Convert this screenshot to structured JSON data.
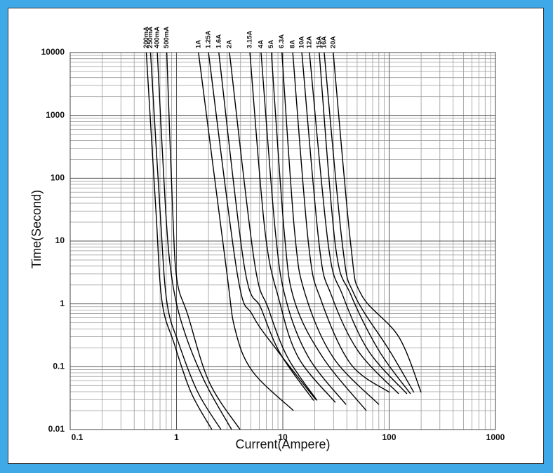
{
  "chart_data": {
    "type": "line",
    "x_label": "Current(Ampere)",
    "y_label": "Time(Second)",
    "x_scale": "log",
    "y_scale": "log",
    "grid": true,
    "color": "#000000",
    "xlim": [
      0.1,
      1000
    ],
    "ylim": [
      0.01,
      10000
    ],
    "xticks": [
      0.1,
      1,
      10,
      100,
      1000
    ],
    "yticks": [
      0.01,
      0.1,
      1,
      10,
      100,
      1000,
      10000
    ],
    "series": [
      {
        "name": "200mA",
        "x": [
          0.52,
          0.64,
          0.73,
          0.95,
          1.37,
          2.15
        ],
        "values": [
          10000,
          31,
          1.1,
          0.235,
          0.039,
          0.01
        ]
      },
      {
        "name": "250mA",
        "x": [
          0.57,
          0.7,
          0.81,
          1.05,
          1.59,
          2.62
        ],
        "values": [
          10000,
          31,
          1.1,
          0.235,
          0.039,
          0.01
        ]
      },
      {
        "name": "400mA",
        "x": [
          0.66,
          0.79,
          0.91,
          1.17,
          1.85,
          3.3
        ],
        "values": [
          10000,
          31,
          2.4,
          0.39,
          0.057,
          0.01
        ]
      },
      {
        "name": "500mA",
        "x": [
          0.81,
          0.92,
          1.01,
          1.28,
          2.03,
          3.96
        ],
        "values": [
          10000,
          31,
          2.4,
          0.66,
          0.057,
          0.01
        ]
      },
      {
        "name": "1A",
        "x": [
          1.61,
          2.92,
          3.56,
          5.2,
          12.6
        ],
        "values": [
          10000,
          4.0,
          0.39,
          0.084,
          0.02
        ]
      },
      {
        "name": "1.25A",
        "x": [
          2.0,
          3.72,
          5.2,
          8.9,
          20.4
        ],
        "values": [
          10000,
          3.1,
          0.66,
          0.18,
          0.03
        ]
      },
      {
        "name": "1.6A",
        "x": [
          2.5,
          4.34,
          6.24,
          9.5,
          19.5
        ],
        "values": [
          10000,
          4.0,
          0.85,
          0.16,
          0.029
        ]
      },
      {
        "name": "2A",
        "x": [
          3.15,
          5.36,
          7.3,
          11.1,
          21.0
        ],
        "values": [
          10000,
          5.1,
          0.85,
          0.14,
          0.029
        ]
      },
      {
        "name": "3.15A",
        "x": [
          4.9,
          6.8,
          9.3,
          14.0,
          31.2
        ],
        "values": [
          10000,
          14.3,
          1.1,
          0.14,
          0.027
        ]
      },
      {
        "name": "4A",
        "x": [
          6.24,
          8.5,
          10.8,
          17.5,
          39.3
        ],
        "values": [
          10000,
          14.3,
          1.1,
          0.14,
          0.025
        ]
      },
      {
        "name": "5A",
        "x": [
          7.8,
          10.3,
          12.9,
          23.8,
          61
        ],
        "values": [
          10000,
          14.3,
          1.1,
          0.14,
          0.02
        ]
      },
      {
        "name": "6.3A",
        "x": [
          9.8,
          12.9,
          16.3,
          29.8,
          80.2
        ],
        "values": [
          10000,
          14.3,
          1.4,
          0.14,
          0.025
        ]
      },
      {
        "name": "8A",
        "x": [
          12.4,
          17.5,
          23.1,
          43.6,
          101
        ],
        "values": [
          10000,
          8.6,
          1.1,
          0.11,
          0.039
        ]
      },
      {
        "name": "10A",
        "x": [
          15.1,
          22.0,
          28.5,
          50.8,
          123
        ],
        "values": [
          10000,
          8.6,
          1.4,
          0.18,
          0.037
        ]
      },
      {
        "name": "12A",
        "x": [
          17.8,
          26.8,
          36.4,
          63.8,
          147
        ],
        "values": [
          10000,
          8.6,
          1.4,
          0.18,
          0.037
        ]
      },
      {
        "name": "15A",
        "x": [
          22.0,
          31.2,
          43.6,
          80.2,
          159
        ],
        "values": [
          10000,
          8.6,
          1.4,
          0.18,
          0.037
        ]
      },
      {
        "name": "16A",
        "x": [
          24.5,
          36.4,
          47.1,
          101,
          171
        ],
        "values": [
          10000,
          8.6,
          1.4,
          0.18,
          0.039
        ]
      },
      {
        "name": "20A",
        "x": [
          29.8,
          43.6,
          54.8,
          123,
          200
        ],
        "values": [
          10000,
          8.6,
          1.4,
          0.3,
          0.039
        ]
      }
    ]
  }
}
